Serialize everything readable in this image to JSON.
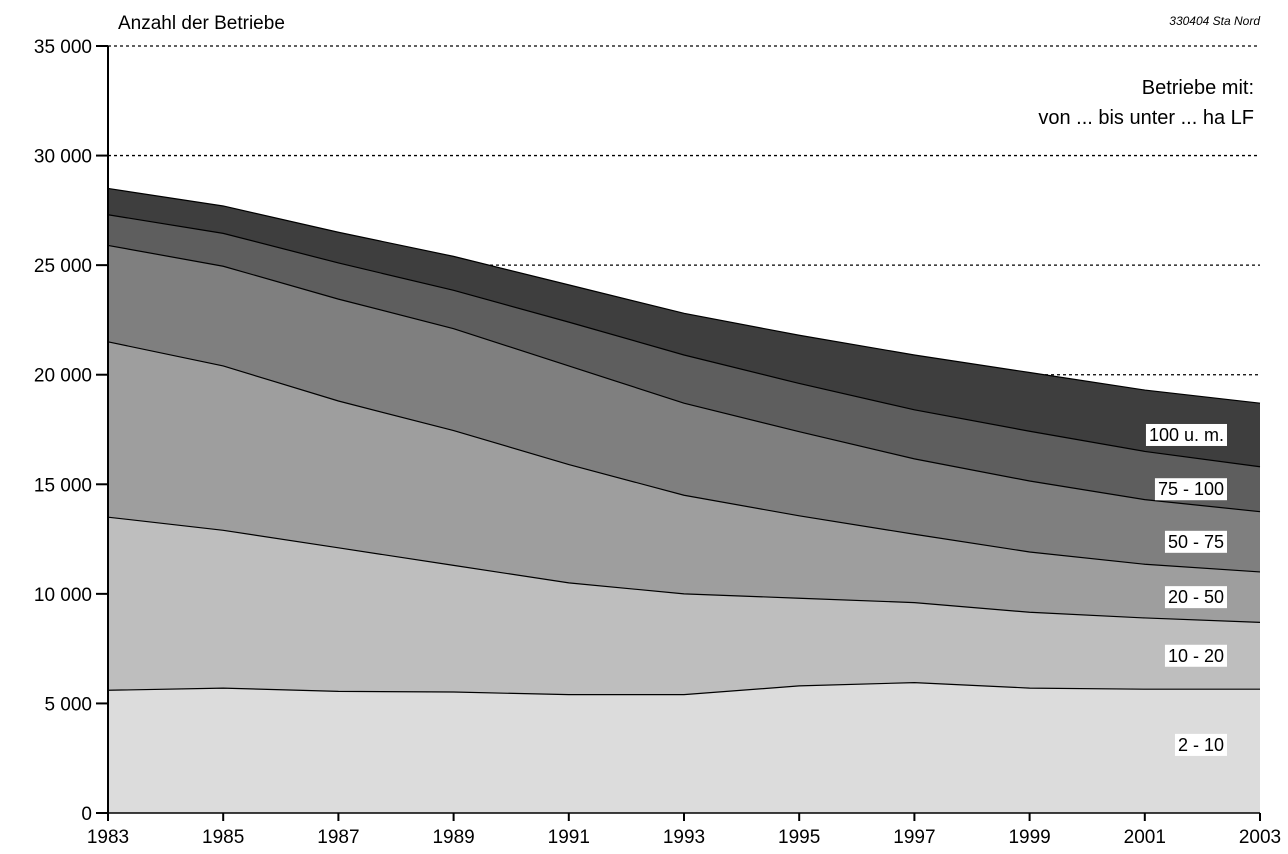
{
  "source_note": "330404 Sta Nord",
  "legend_title": {
    "line1": "Betriebe mit:",
    "line2": "von ... bis unter ... ha LF"
  },
  "chart_data": {
    "type": "area",
    "stacked": true,
    "title": "",
    "ylabel": "Anzahl der Betriebe",
    "xlabel": "",
    "x": [
      1983,
      1985,
      1987,
      1989,
      1991,
      1993,
      1995,
      1997,
      1999,
      2001,
      2003
    ],
    "xticks": [
      "1983",
      "1985",
      "1987",
      "1989",
      "1991",
      "1993",
      "1995",
      "1997",
      "1999",
      "2001",
      "2003"
    ],
    "ylim": [
      0,
      35000
    ],
    "yticks": [
      0,
      5000,
      10000,
      15000,
      20000,
      25000,
      30000,
      35000
    ],
    "ytick_labels": [
      "0",
      "5 000",
      "10 000",
      "15 000",
      "20 000",
      "25 000",
      "30 000",
      "35 000"
    ],
    "grid": "horizontal dashed",
    "series": [
      {
        "name": "2 - 10",
        "color": "#dcdcdc",
        "values": [
          5600,
          5700,
          5550,
          5520,
          5400,
          5400,
          5800,
          5950,
          5700,
          5650,
          5650
        ]
      },
      {
        "name": "10 - 20",
        "color": "#bebebe",
        "values": [
          7900,
          7200,
          6550,
          5780,
          5100,
          4600,
          4000,
          3650,
          3460,
          3250,
          3050
        ]
      },
      {
        "name": "20 - 50",
        "color": "#9e9e9e",
        "values": [
          8000,
          7500,
          6700,
          6150,
          5400,
          4500,
          3760,
          3120,
          2750,
          2450,
          2300
        ]
      },
      {
        "name": "50 - 75",
        "color": "#7f7f7f",
        "values": [
          4400,
          4550,
          4650,
          4650,
          4500,
          4200,
          3840,
          3440,
          3240,
          2950,
          2750
        ]
      },
      {
        "name": "75 - 100",
        "color": "#5e5e5e",
        "values": [
          1400,
          1500,
          1650,
          1750,
          2000,
          2200,
          2200,
          2240,
          2270,
          2200,
          2050
        ]
      },
      {
        "name": "100 u. m.",
        "color": "#3e3e3e",
        "values": [
          1200,
          1250,
          1400,
          1550,
          1700,
          1900,
          2200,
          2500,
          2680,
          2800,
          2900
        ]
      }
    ]
  }
}
